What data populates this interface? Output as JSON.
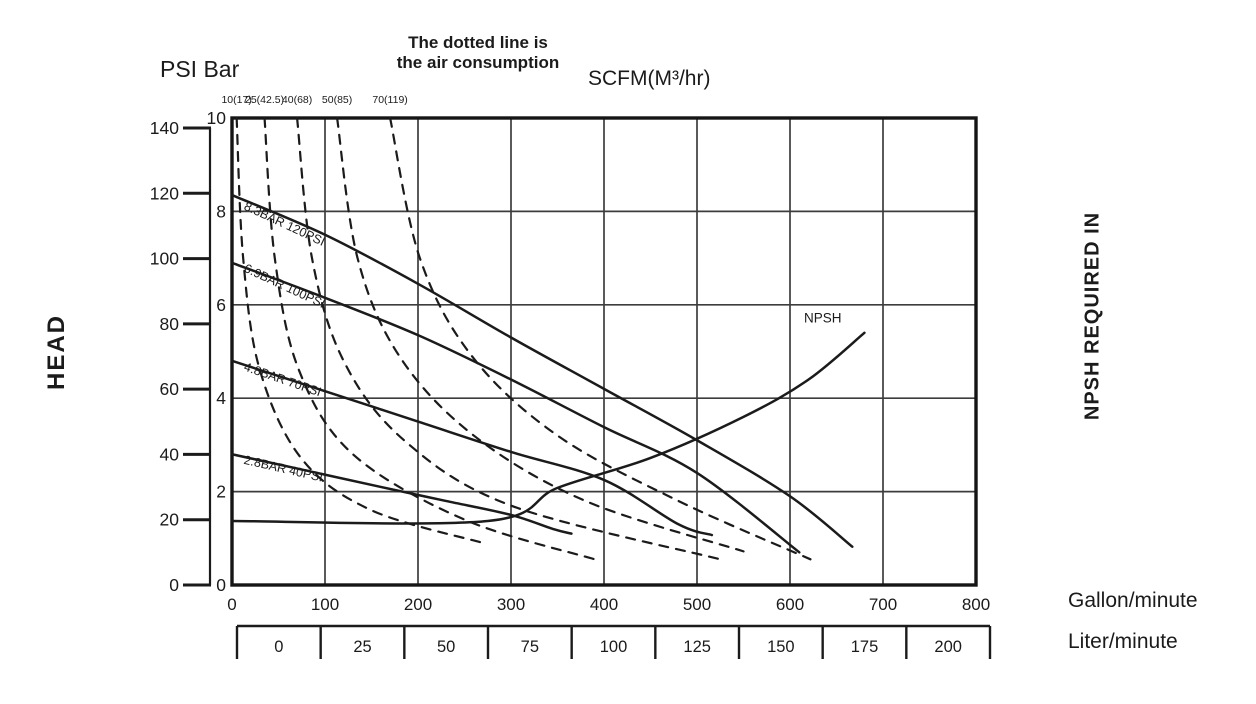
{
  "title": {
    "line1": "The dotted line is",
    "line2": "the air consumption"
  },
  "labels": {
    "psi_bar": "PSI Bar",
    "scfm": "SCFM(M³/hr)",
    "head": "HEAD",
    "npsh_required": "NPSH REQUIRED IN",
    "gallon_per_minute": "Gallon/minute",
    "liter_per_minute": "Liter/minute"
  },
  "colors": {
    "ink": "#1b1b1b",
    "grid": "#3d3d3d",
    "frame": "#151515",
    "background": "#ffffff"
  },
  "chart_data": {
    "type": "line",
    "grid": true,
    "legend": "none",
    "axes": {
      "y_bar": {
        "label": "Bar",
        "range": [
          0,
          10
        ],
        "ticks": [
          0,
          2,
          4,
          6,
          8,
          10
        ]
      },
      "y_psi": {
        "label": "PSI",
        "range": [
          0,
          140
        ],
        "ticks": [
          0,
          20,
          40,
          60,
          80,
          100,
          120,
          140
        ]
      },
      "x_row1": {
        "unit": "Gallon/minute",
        "range": [
          0,
          800
        ],
        "ticks": [
          0,
          100,
          200,
          300,
          400,
          500,
          600,
          700,
          800
        ]
      },
      "x_row2": {
        "unit": "Liter/minute",
        "range": [
          0,
          200
        ],
        "ticks": [
          0,
          25,
          50,
          75,
          100,
          125,
          150,
          175,
          200
        ]
      }
    },
    "series": [
      {
        "id": "air-10",
        "kind": "air",
        "dash": true,
        "scale_label": "10(17)",
        "points": [
          [
            5,
            10
          ],
          [
            12,
            7
          ],
          [
            30,
            4.6
          ],
          [
            75,
            2.7
          ],
          [
            150,
            1.6
          ],
          [
            270,
            0.9
          ]
        ]
      },
      {
        "id": "air-25",
        "kind": "air",
        "dash": true,
        "scale_label": "25(42.5)",
        "points": [
          [
            35,
            10
          ],
          [
            46,
            7
          ],
          [
            72,
            4.6
          ],
          [
            130,
            2.8
          ],
          [
            250,
            1.4
          ],
          [
            390,
            0.55
          ]
        ]
      },
      {
        "id": "air-40",
        "kind": "air",
        "dash": true,
        "scale_label": "40(68)",
        "points": [
          [
            70,
            10
          ],
          [
            86,
            7
          ],
          [
            120,
            4.8
          ],
          [
            185,
            3.1
          ],
          [
            300,
            1.7
          ],
          [
            525,
            0.55
          ]
        ]
      },
      {
        "id": "air-50",
        "kind": "air",
        "dash": true,
        "scale_label": "50(85)",
        "points": [
          [
            113,
            10
          ],
          [
            135,
            7
          ],
          [
            180,
            4.9
          ],
          [
            260,
            3.2
          ],
          [
            380,
            1.8
          ],
          [
            550,
            0.72
          ]
        ]
      },
      {
        "id": "air-70",
        "kind": "air",
        "dash": true,
        "scale_label": "70(119)",
        "points": [
          [
            170,
            10
          ],
          [
            202,
            7
          ],
          [
            258,
            4.9
          ],
          [
            350,
            3.2
          ],
          [
            480,
            1.8
          ],
          [
            622,
            0.55
          ]
        ]
      },
      {
        "id": "pump-120psi",
        "kind": "pump",
        "dash": false,
        "label": "8.3BAR 120PSI",
        "label_pos": [
          12,
          8.05
        ],
        "label_angle": 25,
        "points": [
          [
            0,
            8.35
          ],
          [
            100,
            7.5
          ],
          [
            200,
            6.45
          ],
          [
            300,
            5.3
          ],
          [
            400,
            4.2
          ],
          [
            500,
            3.1
          ],
          [
            600,
            1.9
          ],
          [
            667,
            0.82
          ]
        ]
      },
      {
        "id": "pump-100psi",
        "kind": "pump",
        "dash": false,
        "label": "6.9BAR 100PSI",
        "label_pos": [
          12,
          6.72
        ],
        "label_angle": 25,
        "points": [
          [
            0,
            6.9
          ],
          [
            100,
            6.15
          ],
          [
            200,
            5.35
          ],
          [
            300,
            4.4
          ],
          [
            400,
            3.38
          ],
          [
            500,
            2.4
          ],
          [
            610,
            0.7
          ]
        ]
      },
      {
        "id": "pump-70psi",
        "kind": "pump",
        "dash": false,
        "label": "4.8BAR 70PSI",
        "label_pos": [
          12,
          4.6
        ],
        "label_angle": 19,
        "points": [
          [
            0,
            4.8
          ],
          [
            100,
            4.15
          ],
          [
            200,
            3.5
          ],
          [
            300,
            2.85
          ],
          [
            400,
            2.25
          ],
          [
            480,
            1.3
          ],
          [
            516,
            1.07
          ]
        ]
      },
      {
        "id": "pump-40psi",
        "kind": "pump",
        "dash": false,
        "label": "2.8BAR 40PSI",
        "label_pos": [
          12,
          2.6
        ],
        "label_angle": 13,
        "points": [
          [
            0,
            2.8
          ],
          [
            80,
            2.45
          ],
          [
            160,
            2.1
          ],
          [
            230,
            1.8
          ],
          [
            300,
            1.5
          ],
          [
            345,
            1.2
          ],
          [
            365,
            1.1
          ]
        ]
      },
      {
        "id": "npsh",
        "kind": "npsh",
        "dash": false,
        "label": "NPSH",
        "label_pos": [
          615,
          5.62
        ],
        "label_angle": 0,
        "points": [
          [
            0,
            1.37
          ],
          [
            275,
            1.37
          ],
          [
            350,
            2.08
          ],
          [
            450,
            2.72
          ],
          [
            550,
            3.6
          ],
          [
            620,
            4.4
          ],
          [
            680,
            5.4
          ]
        ]
      }
    ]
  }
}
